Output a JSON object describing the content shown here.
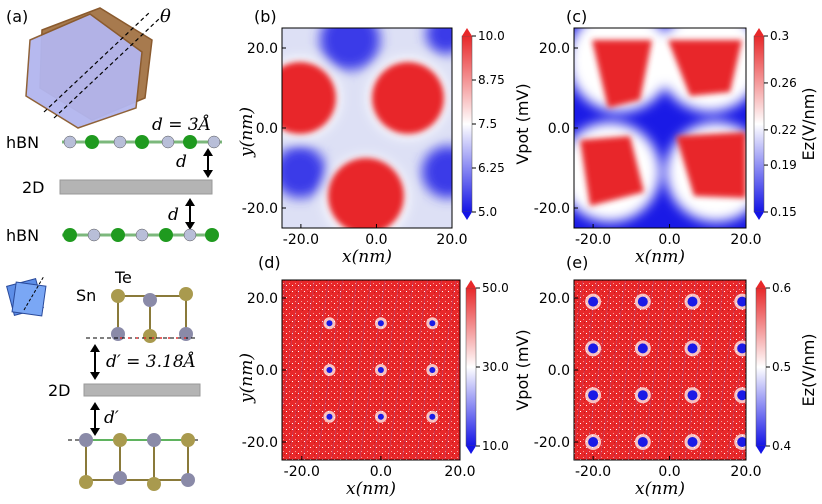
{
  "panel_a": {
    "label": "(a)",
    "theta": "θ",
    "d_eq": "d = 3Å",
    "layer_hbn_top": "hBN",
    "layer_2d_top": "2D",
    "layer_hbn_bottom": "hBN",
    "d_top": "d",
    "d_bottom": "d",
    "sn": "Sn",
    "te": "Te",
    "dprime_eq": "d′ = 3.18Å",
    "layer_2d_bottom": "2D",
    "dprime": "d′"
  },
  "chart_data": [
    {
      "panel": "(b)",
      "type": "heatmap",
      "xlabel": "x(nm)",
      "ylabel": "y(nm)",
      "x_ticks": [
        "-20.0",
        "0.0",
        "20.0"
      ],
      "y_ticks": [
        "20.0",
        "0.0",
        "-20.0"
      ],
      "xlim": [
        -25,
        20
      ],
      "ylim": [
        -25,
        25
      ],
      "colorbar_label": "Vpot (mV)",
      "colorbar_ticks": [
        "10.0",
        "8.75",
        "7.5",
        "6.25",
        "5.0"
      ],
      "colorbar_range": [
        5.0,
        10.0
      ]
    },
    {
      "panel": "(c)",
      "type": "heatmap",
      "xlabel": "x(nm)",
      "ylabel": "",
      "x_ticks": [
        "-20.0",
        "0.0",
        "20.0"
      ],
      "y_ticks": [
        "20.0",
        "0.0",
        "-20.0"
      ],
      "xlim": [
        -25,
        20
      ],
      "ylim": [
        -25,
        25
      ],
      "colorbar_label": "Ez(V/nm)",
      "colorbar_ticks": [
        "0.3",
        "0.26",
        "0.22",
        "0.19",
        "0.15"
      ],
      "colorbar_range": [
        0.15,
        0.3
      ]
    },
    {
      "panel": "(d)",
      "type": "heatmap",
      "xlabel": "x(nm)",
      "ylabel": "y(nm)",
      "x_ticks": [
        "-20.0",
        "0.0",
        "20.0"
      ],
      "y_ticks": [
        "20.0",
        "0.0",
        "-20.0"
      ],
      "xlim": [
        -25,
        20
      ],
      "ylim": [
        -25,
        25
      ],
      "colorbar_label": "Vpot (mV)",
      "colorbar_ticks": [
        "50.0",
        "30.0",
        "10.0"
      ],
      "colorbar_range": [
        10.0,
        50.0
      ]
    },
    {
      "panel": "(e)",
      "type": "heatmap",
      "xlabel": "x(nm)",
      "ylabel": "",
      "x_ticks": [
        "-20.0",
        "0.0",
        "20.0"
      ],
      "y_ticks": [
        "20.0",
        "0.0",
        "-20.0"
      ],
      "xlim": [
        -25,
        20
      ],
      "ylim": [
        -25,
        25
      ],
      "colorbar_label": "Ez(V/nm)",
      "colorbar_ticks": [
        "0.6",
        "0.5",
        "0.4"
      ],
      "colorbar_range": [
        0.4,
        0.6
      ]
    }
  ],
  "colors": {
    "high": "#e8282a",
    "mid": "#ffffff",
    "low": "#1414e6"
  }
}
